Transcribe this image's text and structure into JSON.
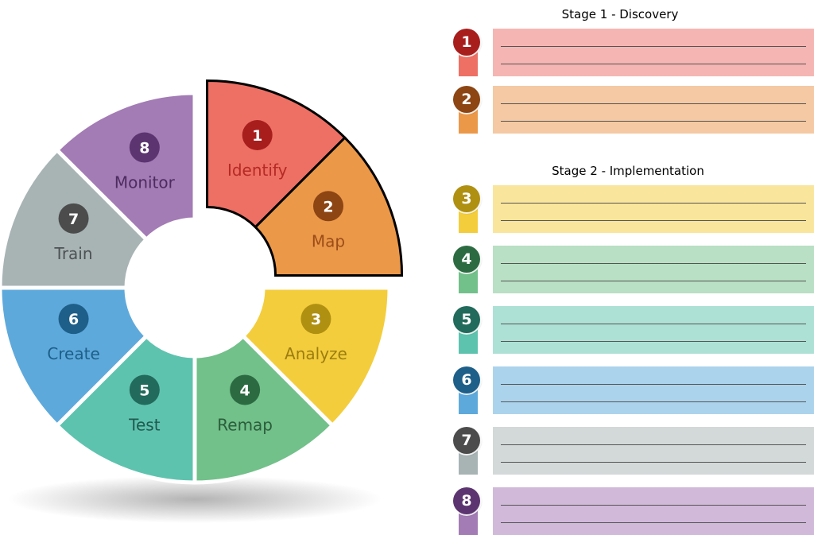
{
  "stages": [
    {
      "title": "Stage 1 - Discovery"
    },
    {
      "title": "Stage 2 - Implementation"
    }
  ],
  "steps": [
    {
      "number": "1",
      "label": "Identify",
      "color": "#ee7064",
      "dark": "#a81e1d",
      "light": "#f5b5b2",
      "text": "#b52a25",
      "stage": 1
    },
    {
      "number": "2",
      "label": "Map",
      "color": "#eb9849",
      "dark": "#8c4513",
      "light": "#f4c9a3",
      "text": "#9c4d18",
      "stage": 1
    },
    {
      "number": "3",
      "label": "Analyze",
      "color": "#f3cd3c",
      "dark": "#b09011",
      "light": "#f9e59c",
      "text": "#9c7d10",
      "stage": 2
    },
    {
      "number": "4",
      "label": "Remap",
      "color": "#72c08a",
      "dark": "#2c6b41",
      "light": "#b9e0c4",
      "text": "#2b5d3a",
      "stage": 2
    },
    {
      "number": "5",
      "label": "Test",
      "color": "#5ec3ae",
      "dark": "#226a5b",
      "light": "#aee1d5",
      "text": "#1f5a4e",
      "stage": 2
    },
    {
      "number": "6",
      "label": "Create",
      "color": "#5ea9dc",
      "dark": "#1d5f88",
      "light": "#acd3ec",
      "text": "#1d5f88",
      "stage": 2
    },
    {
      "number": "7",
      "label": "Train",
      "color": "#a8b3b4",
      "dark": "#4c4c4c",
      "light": "#d3d8d9",
      "text": "#4d5253",
      "stage": 2
    },
    {
      "number": "8",
      "label": "Monitor",
      "color": "#a37bb5",
      "dark": "#5c3570",
      "light": "#d1b9da",
      "text": "#4d2c60",
      "stage": 2
    }
  ]
}
